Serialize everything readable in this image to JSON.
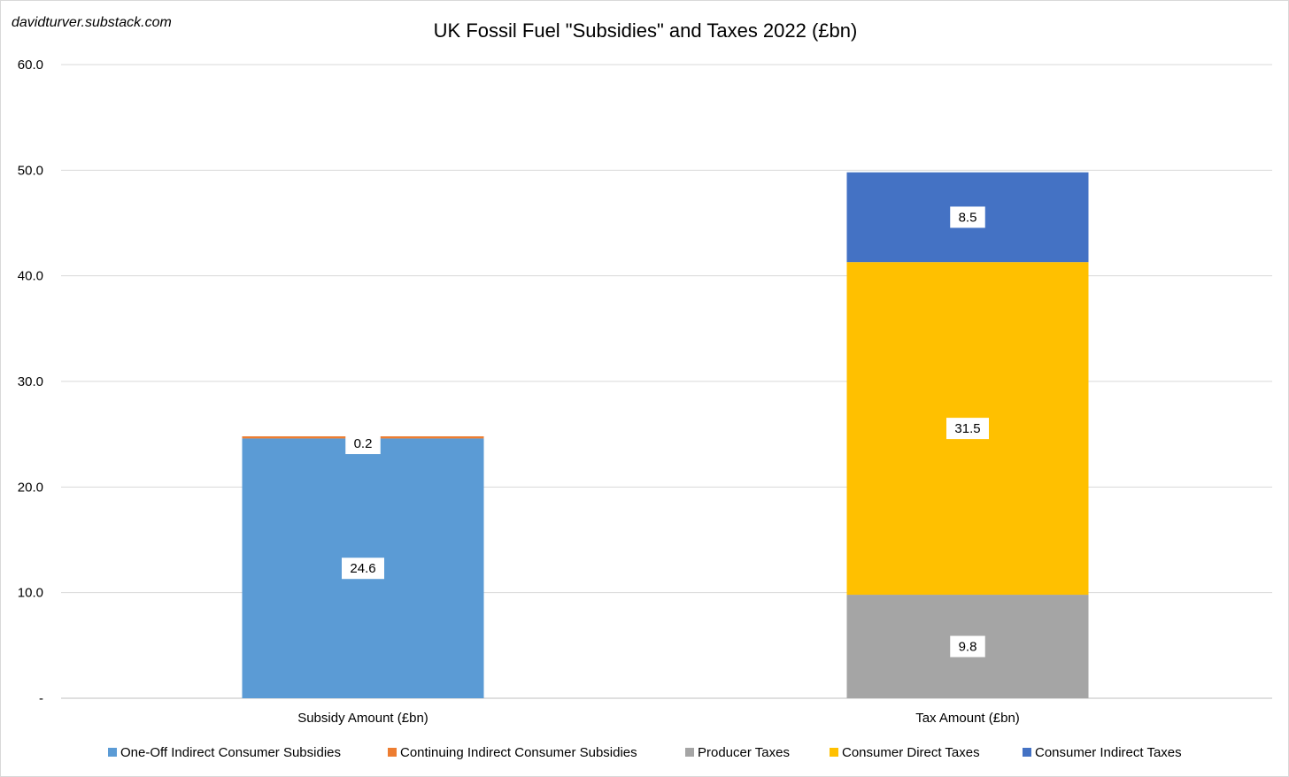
{
  "watermark": "davidturver.substack.com",
  "chart_data": {
    "type": "bar",
    "stacked": true,
    "title": "UK Fossil Fuel \"Subsidies\" and Taxes 2022 (£bn)",
    "categories": [
      "Subsidy Amount (£bn)",
      "Tax Amount (£bn)"
    ],
    "ylim": [
      0,
      60
    ],
    "yticks": [
      {
        "value": 0,
        "label": "-"
      },
      {
        "value": 10,
        "label": "10.0"
      },
      {
        "value": 20,
        "label": "20.0"
      },
      {
        "value": 30,
        "label": "30.0"
      },
      {
        "value": 40,
        "label": "40.0"
      },
      {
        "value": 50,
        "label": "50.0"
      },
      {
        "value": 60,
        "label": "60.0"
      }
    ],
    "grid": true,
    "legend_position": "bottom",
    "series": [
      {
        "name": "One-Off Indirect Consumer Subsidies",
        "color": "#5b9bd5",
        "values": [
          24.6,
          0
        ],
        "labels": [
          "24.6",
          ""
        ]
      },
      {
        "name": "Continuing Indirect Consumer Subsidies",
        "color": "#ed7d31",
        "values": [
          0.2,
          0
        ],
        "labels": [
          "0.2",
          ""
        ]
      },
      {
        "name": "Producer Taxes",
        "color": "#a5a5a5",
        "values": [
          0,
          9.8
        ],
        "labels": [
          "",
          "9.8"
        ]
      },
      {
        "name": "Consumer Direct Taxes",
        "color": "#ffc000",
        "values": [
          0,
          31.5
        ],
        "labels": [
          "",
          "31.5"
        ]
      },
      {
        "name": "Consumer Indirect Taxes",
        "color": "#4472c4",
        "values": [
          0,
          8.5
        ],
        "labels": [
          "",
          "8.5"
        ]
      }
    ]
  }
}
